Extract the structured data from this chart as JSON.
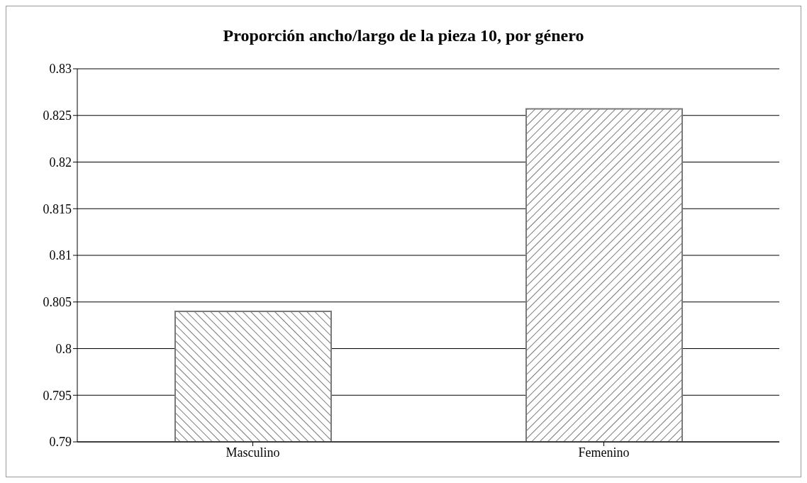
{
  "chart_data": {
    "type": "bar",
    "title": "Proporción ancho/largo de la pieza 10, por género",
    "categories": [
      "Masculino",
      "Femenino"
    ],
    "values": [
      0.804,
      0.8257
    ],
    "colors": [
      "#7a7a7a",
      "#7a7a7a"
    ],
    "ylim": [
      0.79,
      0.83
    ],
    "yticks": [
      0.79,
      0.795,
      0.8,
      0.805,
      0.81,
      0.815,
      0.82,
      0.825,
      0.83
    ],
    "grid": "y"
  }
}
